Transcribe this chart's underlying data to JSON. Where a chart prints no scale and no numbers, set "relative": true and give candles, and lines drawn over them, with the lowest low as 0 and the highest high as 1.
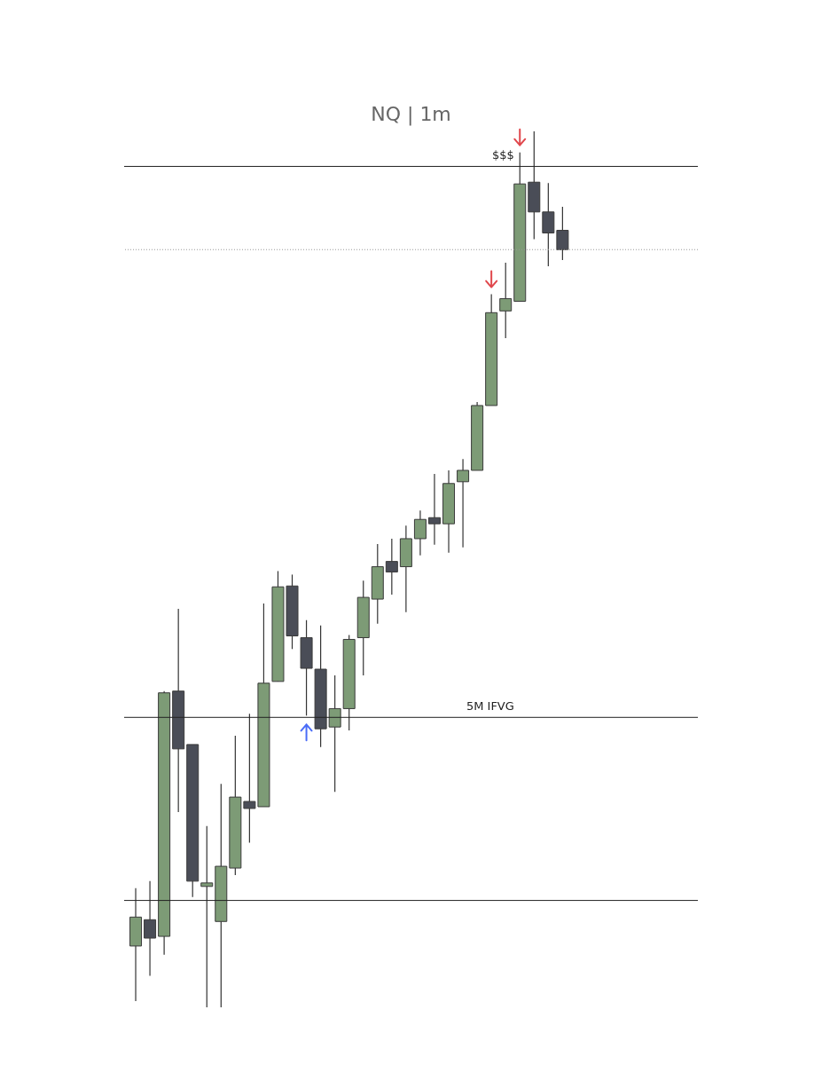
{
  "chart_data": {
    "type": "candlestick",
    "title": "NQ | 1m",
    "relative": true,
    "categories": [
      null,
      null,
      null,
      null,
      null,
      null,
      null,
      null,
      null,
      null,
      null,
      null,
      null,
      null,
      null,
      null,
      null,
      null,
      null,
      null,
      null,
      null,
      null,
      null,
      null,
      null,
      null,
      null,
      null,
      null,
      null
    ],
    "ohlc": [
      [
        0.07,
        0.136,
        0.007,
        0.103
      ],
      [
        0.1,
        0.144,
        0.036,
        0.079
      ],
      [
        0.081,
        0.361,
        0.06,
        0.359
      ],
      [
        0.361,
        0.455,
        0.223,
        0.295
      ],
      [
        0.3,
        0.3,
        0.126,
        0.144
      ],
      [
        0.138,
        0.207,
        0.0,
        0.142
      ],
      [
        0.098,
        0.255,
        0.0,
        0.161
      ],
      [
        0.159,
        0.31,
        0.151,
        0.24
      ],
      [
        0.235,
        0.335,
        0.188,
        0.227
      ],
      [
        0.229,
        0.461,
        0.229,
        0.37
      ],
      [
        0.372,
        0.498,
        0.372,
        0.48
      ],
      [
        0.481,
        0.494,
        0.409,
        0.424
      ],
      [
        0.422,
        0.442,
        0.333,
        0.387
      ],
      [
        0.386,
        0.436,
        0.297,
        0.318
      ],
      [
        0.32,
        0.379,
        0.246,
        0.341
      ],
      [
        0.341,
        0.425,
        0.316,
        0.42
      ],
      [
        0.422,
        0.487,
        0.379,
        0.468
      ],
      [
        0.466,
        0.529,
        0.438,
        0.503
      ],
      [
        0.509,
        0.535,
        0.471,
        0.497
      ],
      [
        0.503,
        0.55,
        0.451,
        0.535
      ],
      [
        0.535,
        0.567,
        0.516,
        0.557
      ],
      [
        0.559,
        0.609,
        0.528,
        0.552
      ],
      [
        0.552,
        0.613,
        0.519,
        0.598
      ],
      [
        0.6,
        0.626,
        0.525,
        0.613
      ],
      [
        0.613,
        0.691,
        0.613,
        0.687
      ],
      [
        0.687,
        0.814,
        0.687,
        0.793
      ],
      [
        0.795,
        0.85,
        0.764,
        0.809
      ],
      [
        0.806,
        0.976,
        0.806,
        0.94
      ],
      [
        0.942,
        1.0,
        0.877,
        0.908
      ],
      [
        0.908,
        0.941,
        0.846,
        0.884
      ],
      [
        0.887,
        0.914,
        0.853,
        0.865
      ]
    ],
    "colors": [
      "#7d9b76",
      "#4a4d57",
      "#7d9b76",
      "#4a4d57",
      "#4a4d57",
      "#7d9b76",
      "#7d9b76",
      "#7d9b76",
      "#4a4d57",
      "#7d9b76",
      "#7d9b76",
      "#4a4d57",
      "#4a4d57",
      "#4a4d57",
      "#7d9b76",
      "#7d9b76",
      "#7d9b76",
      "#7d9b76",
      "#4a4d57",
      "#7d9b76",
      "#7d9b76",
      "#4a4d57",
      "#7d9b76",
      "#7d9b76",
      "#7d9b76",
      "#7d9b76",
      "#7d9b76",
      "#7d9b76",
      "#4a4d57",
      "#4a4d57",
      "#4a4d57"
    ],
    "ref_lines": [
      {
        "axis": "y",
        "value": 0.96,
        "label": "$$$",
        "color": "#222222"
      },
      {
        "axis": "y",
        "value": 0.865,
        "color": "#999999",
        "line_style": "dotted"
      },
      {
        "axis": "y",
        "value": 0.331,
        "label": "5M IFVG",
        "color": "#222222"
      },
      {
        "axis": "y",
        "value": 0.122,
        "color": "#222222"
      }
    ]
  }
}
